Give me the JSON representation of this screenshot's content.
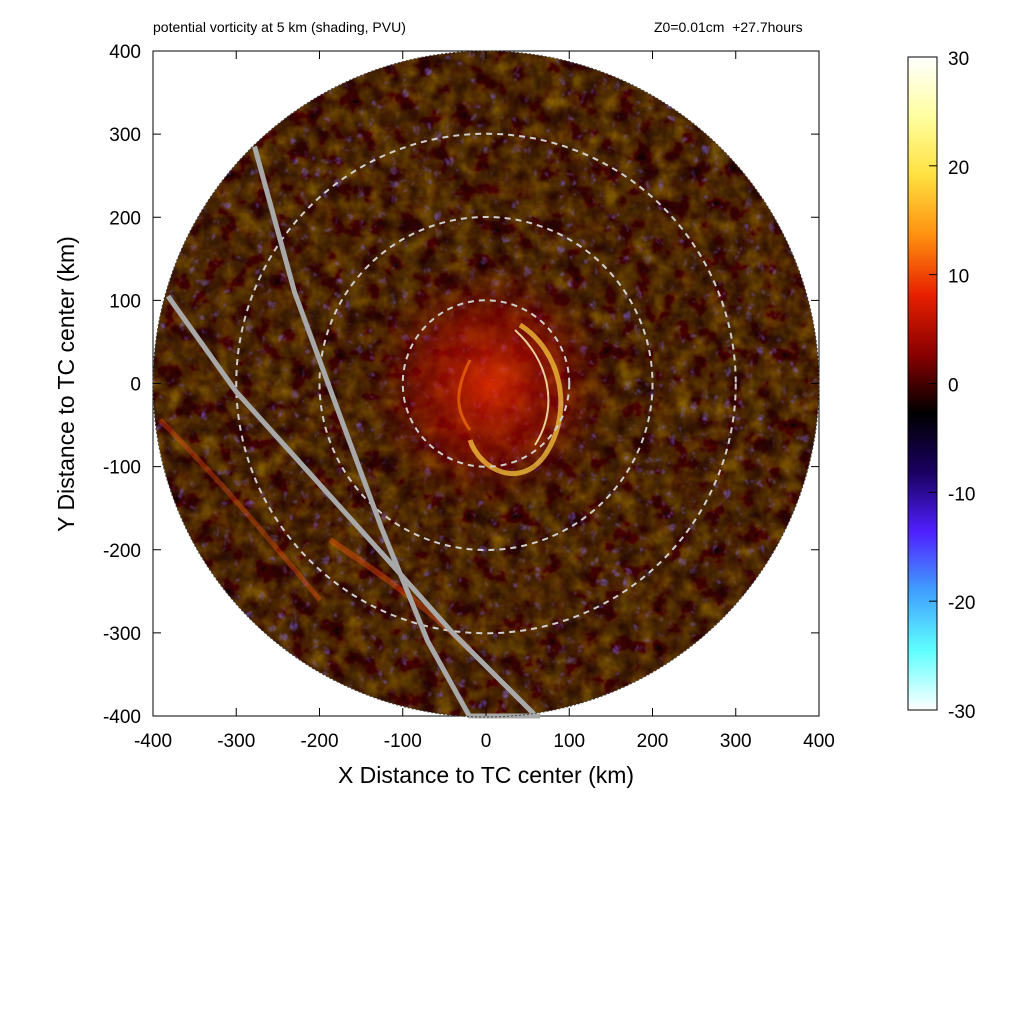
{
  "chart_data": {
    "type": "heatmap",
    "title": "potential vorticity at 5 km (shading, PVU)",
    "subtitle": "Z0=0.01cm  +27.7hours",
    "xlabel": "X Distance to TC center (km)",
    "ylabel": "Y Distance to TC center (km)",
    "xlim": [
      -400,
      400
    ],
    "ylim": [
      -400,
      400
    ],
    "xticks": [
      "-400",
      "-300",
      "-200",
      "-100",
      "0",
      "100",
      "200",
      "300",
      "400"
    ],
    "yticks": [
      "400",
      "300",
      "200",
      "100",
      "0",
      "-100",
      "-200",
      "-300",
      "-400"
    ],
    "domain_radius_km": 400,
    "range_rings_km": [
      100,
      200,
      300
    ],
    "colorbar": {
      "min": -30,
      "max": 30,
      "ticks": [
        "30",
        "20",
        "10",
        "0",
        "-10",
        "-20",
        "-30"
      ],
      "colors": [
        "#ffffff",
        "#ffffa0",
        "#ffe040",
        "#ff9010",
        "#e82000",
        "#8a0000",
        "#000000",
        "#1a0060",
        "#5020ff",
        "#40a0ff",
        "#60ffff",
        "#ffffff"
      ]
    },
    "tracks": [
      {
        "x": [
          -278,
          -230,
          -175,
          -125,
          -70,
          -20,
          30,
          65
        ],
        "y": [
          285,
          110,
          -40,
          -175,
          -310,
          -400,
          -400,
          -400
        ]
      },
      {
        "x": [
          -382,
          -300,
          -210,
          -120,
          -40,
          20,
          60
        ],
        "y": [
          105,
          -10,
          -110,
          -210,
          -300,
          -360,
          -400
        ]
      }
    ]
  }
}
